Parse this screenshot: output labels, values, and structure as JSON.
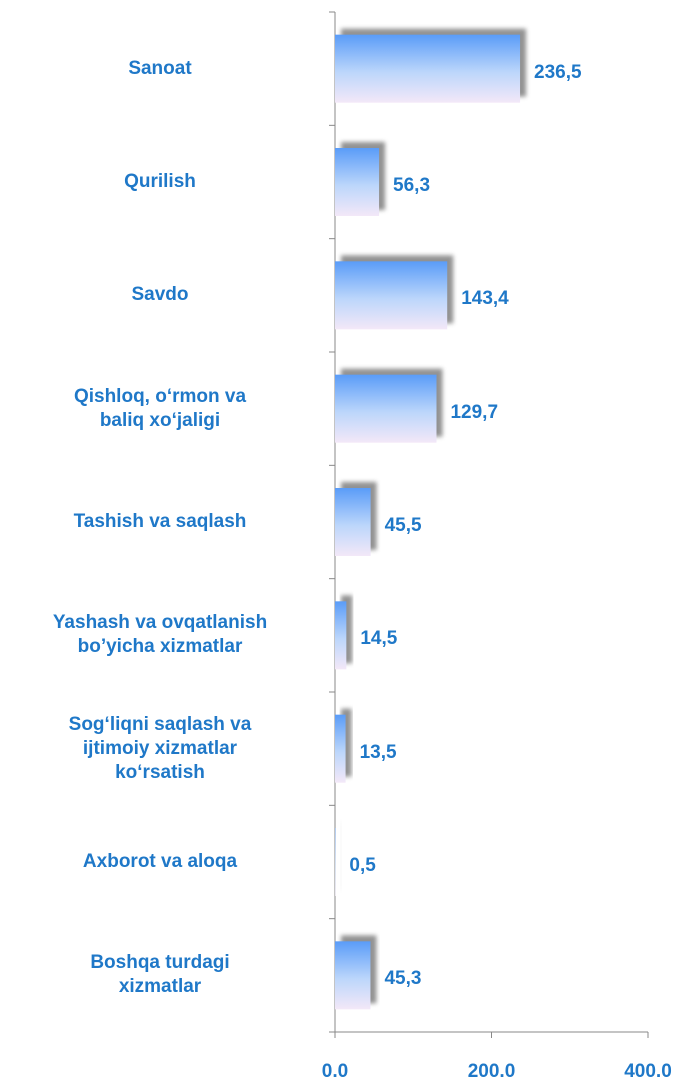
{
  "chart_data": {
    "type": "barh",
    "categories": [
      "Sanoat",
      "Qurilish",
      "Savdo",
      "Qishloq, o‘rmon va\nbaliq xo‘jaligi",
      "Tashish va saqlash",
      "Yashash va ovqatlanish\nbo’yicha xizmatlar",
      "Sog‘liqni saqlash va\nijtimoiy xizmatlar\nko‘rsatish",
      "Axborot va aloqa",
      "Boshqa turdagi\nxizmatlar"
    ],
    "values": [
      236.5,
      56.3,
      143.4,
      129.7,
      45.5,
      14.5,
      13.5,
      0.5,
      45.3
    ],
    "value_labels": [
      "236,5",
      "56,3",
      "143,4",
      "129,7",
      "45,5",
      "14,5",
      "13,5",
      "0,5",
      "45,3"
    ],
    "color": "#5a9cf8",
    "xlim": [
      0,
      400
    ],
    "xticks": [
      {
        "value": 0,
        "label": "0,0"
      },
      {
        "value": 200,
        "label": "200,0"
      },
      {
        "value": 400,
        "label": "400,0"
      }
    ]
  }
}
